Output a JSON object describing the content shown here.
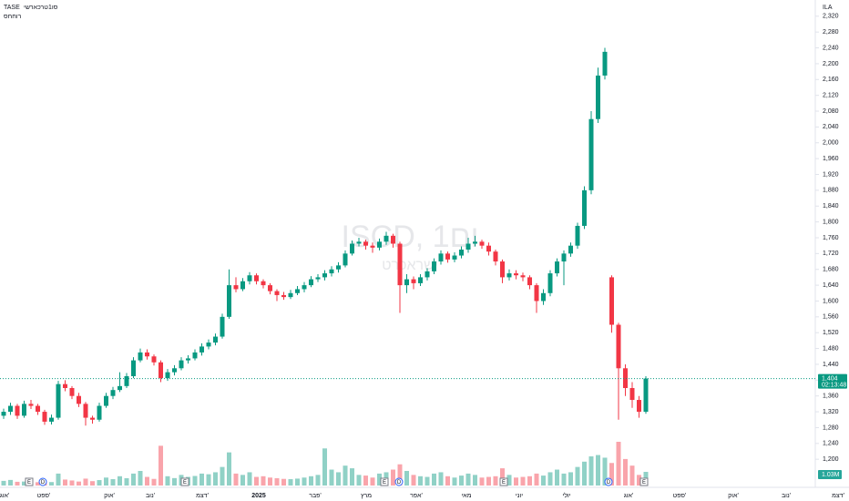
{
  "header": {
    "exchange": "TASE",
    "name": "טרכארשי",
    "interval": "סו1",
    "sub": "רוחחס"
  },
  "chart_data": {
    "type": "candlestick",
    "watermark": "ISCD, 1ום",
    "watermark_sub": "ישראכרט",
    "currency": "ILA",
    "up_color": "#089981",
    "down_color": "#f23645",
    "candles": [
      [
        1310,
        1328,
        1302,
        1320
      ],
      [
        1320,
        1343,
        1312,
        1335
      ],
      [
        1335,
        1340,
        1302,
        1310
      ],
      [
        1310,
        1348,
        1305,
        1340
      ],
      [
        1340,
        1350,
        1327,
        1335
      ],
      [
        1335,
        1340,
        1312,
        1320
      ],
      [
        1320,
        1325,
        1287,
        1295
      ],
      [
        1295,
        1313,
        1288,
        1305
      ],
      [
        1305,
        1398,
        1300,
        1390
      ],
      [
        1390,
        1400,
        1372,
        1380
      ],
      [
        1380,
        1385,
        1352,
        1360
      ],
      [
        1360,
        1368,
        1332,
        1340
      ],
      [
        1340,
        1345,
        1285,
        1305
      ],
      [
        1305,
        1310,
        1290,
        1300
      ],
      [
        1300,
        1343,
        1295,
        1335
      ],
      [
        1335,
        1368,
        1330,
        1360
      ],
      [
        1360,
        1383,
        1352,
        1375
      ],
      [
        1375,
        1420,
        1370,
        1385
      ],
      [
        1385,
        1418,
        1380,
        1410
      ],
      [
        1410,
        1458,
        1405,
        1450
      ],
      [
        1450,
        1480,
        1445,
        1470
      ],
      [
        1470,
        1478,
        1452,
        1460
      ],
      [
        1460,
        1465,
        1437,
        1445
      ],
      [
        1445,
        1450,
        1395,
        1405
      ],
      [
        1405,
        1428,
        1398,
        1420
      ],
      [
        1420,
        1438,
        1412,
        1430
      ],
      [
        1430,
        1458,
        1425,
        1450
      ],
      [
        1450,
        1463,
        1442,
        1455
      ],
      [
        1455,
        1478,
        1450,
        1470
      ],
      [
        1470,
        1493,
        1462,
        1485
      ],
      [
        1485,
        1503,
        1478,
        1495
      ],
      [
        1495,
        1518,
        1488,
        1510
      ],
      [
        1510,
        1568,
        1505,
        1560
      ],
      [
        1560,
        1680,
        1555,
        1640
      ],
      [
        1640,
        1660,
        1622,
        1630
      ],
      [
        1630,
        1658,
        1625,
        1650
      ],
      [
        1650,
        1673,
        1642,
        1665
      ],
      [
        1665,
        1670,
        1642,
        1650
      ],
      [
        1650,
        1655,
        1632,
        1640
      ],
      [
        1640,
        1645,
        1617,
        1625
      ],
      [
        1625,
        1630,
        1600,
        1615
      ],
      [
        1615,
        1623,
        1603,
        1610
      ],
      [
        1610,
        1628,
        1605,
        1620
      ],
      [
        1620,
        1638,
        1615,
        1630
      ],
      [
        1630,
        1648,
        1622,
        1640
      ],
      [
        1640,
        1663,
        1635,
        1655
      ],
      [
        1655,
        1668,
        1648,
        1660
      ],
      [
        1660,
        1678,
        1652,
        1670
      ],
      [
        1670,
        1688,
        1662,
        1680
      ],
      [
        1680,
        1698,
        1672,
        1690
      ],
      [
        1690,
        1728,
        1685,
        1720
      ],
      [
        1720,
        1753,
        1715,
        1745
      ],
      [
        1745,
        1760,
        1738,
        1750
      ],
      [
        1750,
        1755,
        1730,
        1740
      ],
      [
        1740,
        1748,
        1722,
        1735
      ],
      [
        1735,
        1758,
        1728,
        1750
      ],
      [
        1750,
        1775,
        1742,
        1765
      ],
      [
        1765,
        1770,
        1735,
        1745
      ],
      [
        1745,
        1750,
        1570,
        1640
      ],
      [
        1640,
        1668,
        1620,
        1655
      ],
      [
        1655,
        1662,
        1630,
        1645
      ],
      [
        1645,
        1668,
        1638,
        1660
      ],
      [
        1660,
        1683,
        1652,
        1675
      ],
      [
        1675,
        1708,
        1668,
        1700
      ],
      [
        1700,
        1728,
        1692,
        1720
      ],
      [
        1720,
        1725,
        1697,
        1705
      ],
      [
        1705,
        1723,
        1698,
        1715
      ],
      [
        1715,
        1738,
        1708,
        1730
      ],
      [
        1730,
        1760,
        1722,
        1745
      ],
      [
        1745,
        1765,
        1738,
        1750
      ],
      [
        1750,
        1755,
        1732,
        1740
      ],
      [
        1740,
        1748,
        1715,
        1725
      ],
      [
        1725,
        1730,
        1690,
        1700
      ],
      [
        1700,
        1705,
        1645,
        1660
      ],
      [
        1660,
        1680,
        1652,
        1670
      ],
      [
        1670,
        1678,
        1655,
        1665
      ],
      [
        1665,
        1672,
        1650,
        1660
      ],
      [
        1660,
        1665,
        1630,
        1640
      ],
      [
        1640,
        1645,
        1570,
        1600
      ],
      [
        1600,
        1630,
        1590,
        1620
      ],
      [
        1620,
        1678,
        1612,
        1670
      ],
      [
        1670,
        1708,
        1662,
        1700
      ],
      [
        1700,
        1728,
        1640,
        1720
      ],
      [
        1720,
        1748,
        1712,
        1740
      ],
      [
        1740,
        1798,
        1732,
        1790
      ],
      [
        1790,
        1890,
        1782,
        1880
      ],
      [
        1880,
        2080,
        1870,
        2060
      ],
      [
        2060,
        2190,
        2050,
        2170
      ],
      [
        2170,
        2240,
        2160,
        2230
      ],
      [
        1660,
        1665,
        1520,
        1540
      ],
      [
        1540,
        1545,
        1300,
        1430
      ],
      [
        1430,
        1440,
        1360,
        1380
      ],
      [
        1380,
        1395,
        1330,
        1350
      ],
      [
        1350,
        1360,
        1305,
        1320
      ],
      [
        1320,
        1410,
        1315,
        1404
      ]
    ],
    "volume": {
      "values": [
        350000,
        420000,
        280000,
        300000,
        390000,
        250000,
        310000,
        260000,
        900000,
        450000,
        380000,
        300000,
        520000,
        330000,
        410000,
        600000,
        480000,
        700000,
        550000,
        900000,
        1100000,
        650000,
        500000,
        3000000,
        700000,
        560000,
        800000,
        650000,
        720000,
        900000,
        850000,
        1000000,
        1400000,
        2500000,
        900000,
        800000,
        1000000,
        650000,
        700000,
        600000,
        550000,
        500000,
        480000,
        520000,
        600000,
        700000,
        800000,
        2800000,
        1200000,
        1000000,
        1500000,
        1300000,
        800000,
        750000,
        600000,
        900000,
        1000000,
        1200000,
        1600000,
        1100000,
        800000,
        700000,
        650000,
        900000,
        1000000,
        700000,
        600000,
        750000,
        900000,
        800000,
        600000,
        650000,
        700000,
        1300000,
        800000,
        600000,
        650000,
        700000,
        900000,
        750000,
        1000000,
        1200000,
        900000,
        1000000,
        1400000,
        1800000,
        2200000,
        2300000,
        2100000,
        1700000,
        3300000,
        2000000,
        1500000,
        800000,
        1030000
      ],
      "last_label": "1.03M"
    },
    "ylim": [
      1129,
      2361
    ],
    "yticks": [
      {
        "value": 1200,
        "label": "1,200"
      },
      {
        "value": 1240,
        "label": "1,240"
      },
      {
        "value": 1280,
        "label": "1,280"
      },
      {
        "value": 1320,
        "label": "1,320"
      },
      {
        "value": 1360,
        "label": "1,360"
      },
      {
        "value": 1400,
        "label": "1,400"
      },
      {
        "value": 1440,
        "label": "1,440"
      },
      {
        "value": 1480,
        "label": "1,480"
      },
      {
        "value": 1520,
        "label": "1,520"
      },
      {
        "value": 1560,
        "label": "1,560"
      },
      {
        "value": 1600,
        "label": "1,600"
      },
      {
        "value": 1640,
        "label": "1,640"
      },
      {
        "value": 1680,
        "label": "1,680"
      },
      {
        "value": 1720,
        "label": "1,720"
      },
      {
        "value": 1760,
        "label": "1,760"
      },
      {
        "value": 1800,
        "label": "1,800"
      },
      {
        "value": 1840,
        "label": "1,840"
      },
      {
        "value": 1880,
        "label": "1,880"
      },
      {
        "value": 1920,
        "label": "1,920"
      },
      {
        "value": 1960,
        "label": "1,960"
      },
      {
        "value": 2000,
        "label": "2,000"
      },
      {
        "value": 2040,
        "label": "2,040"
      },
      {
        "value": 2080,
        "label": "2,080"
      },
      {
        "value": 2120,
        "label": "2,120"
      },
      {
        "value": 2160,
        "label": "2,160"
      },
      {
        "value": 2200,
        "label": "2,200"
      },
      {
        "value": 2240,
        "label": "2,240"
      },
      {
        "value": 2280,
        "label": "2,280"
      },
      {
        "value": 2320,
        "label": "2,320"
      }
    ],
    "last_price": {
      "value": 1404,
      "label": "1,404"
    },
    "countdown": "02:13:48",
    "x_labels": [
      "אוג'",
      "ספט'",
      "אוק'",
      "נוב'",
      "דצמ'",
      "2025",
      "פבר'",
      "מרץ",
      "אפר'",
      "מאי",
      "יוני",
      "יולי",
      "אוג'",
      "ספט'",
      "אוק'",
      "נוב'",
      "דצמ'"
    ],
    "events": [
      "E",
      "D",
      "E",
      "E",
      "D",
      "E",
      "D",
      "E"
    ]
  }
}
